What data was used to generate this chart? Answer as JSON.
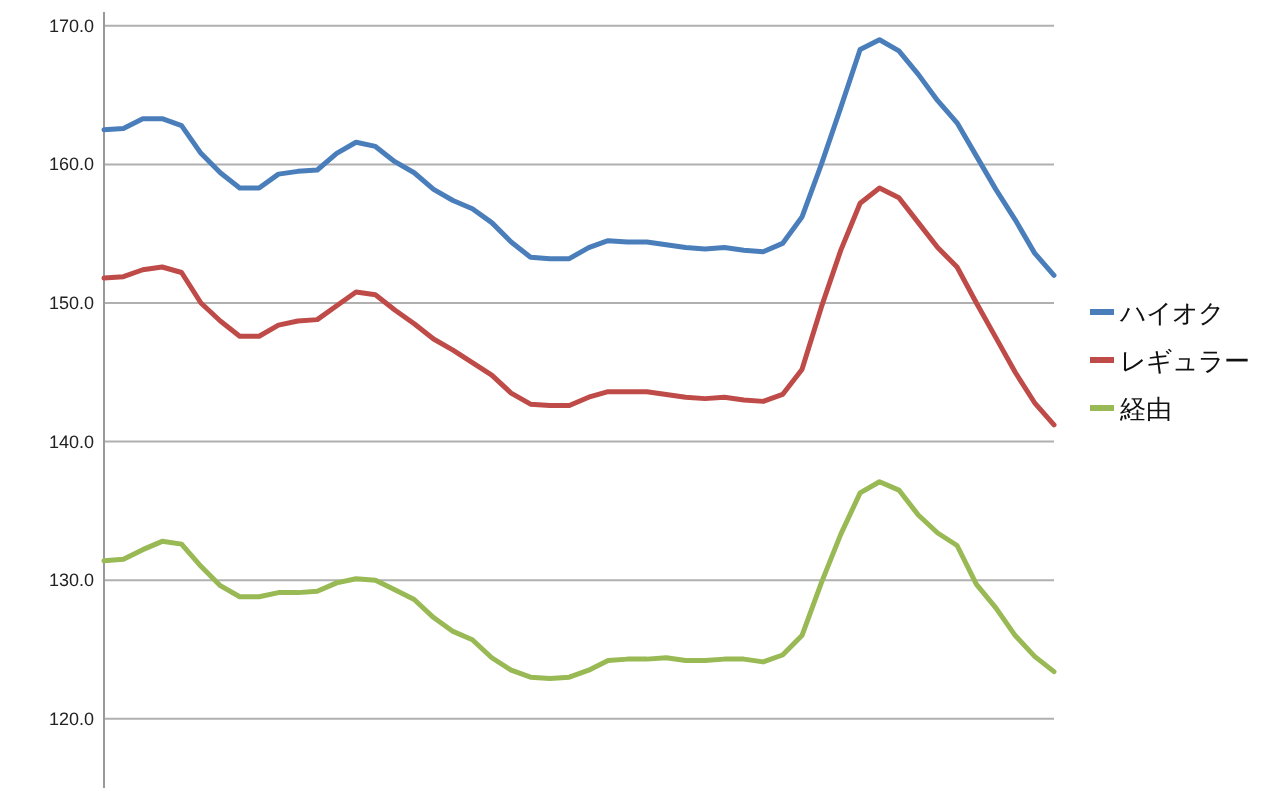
{
  "chart_data": {
    "type": "line",
    "categories": [
      null,
      null,
      null,
      null,
      null,
      null,
      null,
      null,
      null,
      null,
      null,
      null,
      null,
      null,
      null,
      null,
      null,
      null,
      null,
      null,
      null,
      null,
      null,
      null,
      null,
      null,
      null,
      null,
      null,
      null,
      null,
      null,
      null,
      null,
      null,
      null,
      null,
      null,
      null,
      null,
      null,
      null,
      null,
      null,
      null,
      null,
      null,
      null,
      null,
      null
    ],
    "series": [
      {
        "name": "ハイオク",
        "color": "#4a7ebb",
        "values": [
          162.5,
          162.6,
          163.3,
          163.3,
          162.8,
          160.8,
          159.4,
          158.3,
          158.3,
          159.3,
          159.5,
          159.6,
          160.8,
          161.6,
          161.3,
          160.2,
          159.4,
          158.2,
          157.4,
          156.8,
          155.8,
          154.4,
          153.3,
          153.2,
          153.2,
          154.0,
          154.5,
          154.4,
          154.4,
          154.2,
          154.0,
          153.9,
          154.0,
          153.8,
          153.7,
          154.3,
          156.2,
          160.0,
          164.1,
          168.3,
          169.0,
          168.2,
          166.5,
          164.6,
          163.0,
          160.6,
          158.2,
          156.0,
          153.6,
          152.0
        ]
      },
      {
        "name": "レギュラー",
        "color": "#be4b48",
        "values": [
          151.8,
          151.9,
          152.4,
          152.6,
          152.2,
          150.0,
          148.7,
          147.6,
          147.6,
          148.4,
          148.7,
          148.8,
          149.8,
          150.8,
          150.6,
          149.5,
          148.5,
          147.4,
          146.6,
          145.7,
          144.8,
          143.5,
          142.7,
          142.6,
          142.6,
          143.2,
          143.6,
          143.6,
          143.6,
          143.4,
          143.2,
          143.1,
          143.2,
          143.0,
          142.9,
          143.4,
          145.2,
          149.7,
          153.8,
          157.2,
          158.3,
          157.6,
          155.8,
          154.0,
          152.6,
          150.0,
          147.5,
          145.0,
          142.8,
          141.2
        ]
      },
      {
        "name": "経由",
        "color": "#98b954",
        "values": [
          131.4,
          131.5,
          132.2,
          132.8,
          132.6,
          131.0,
          129.6,
          128.8,
          128.8,
          129.1,
          129.1,
          129.2,
          129.8,
          130.1,
          130.0,
          129.3,
          128.6,
          127.3,
          126.3,
          125.7,
          124.4,
          123.5,
          123.0,
          122.9,
          123.0,
          123.5,
          124.2,
          124.3,
          124.3,
          124.4,
          124.2,
          124.2,
          124.3,
          124.3,
          124.1,
          124.6,
          126.0,
          129.8,
          133.3,
          136.3,
          137.1,
          136.5,
          134.7,
          133.4,
          132.5,
          129.7,
          128.0,
          126.0,
          124.5,
          123.4
        ]
      }
    ],
    "ylim": [
      115,
      171
    ],
    "yticks": [
      {
        "value": 120,
        "label": "120.0"
      },
      {
        "value": 130,
        "label": "130.0"
      },
      {
        "value": 140,
        "label": "140.0"
      },
      {
        "value": 150,
        "label": "150.0"
      },
      {
        "value": 160,
        "label": "160.0"
      },
      {
        "value": 170,
        "label": "170.0"
      }
    ],
    "grid": "y",
    "legend": "right",
    "marker": "none",
    "line_style": "solid"
  }
}
